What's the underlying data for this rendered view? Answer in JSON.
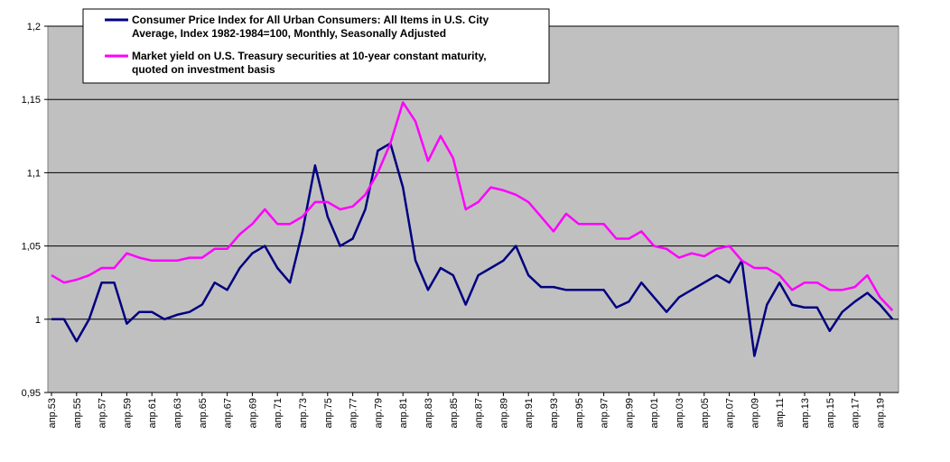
{
  "chart_data": {
    "type": "line",
    "categories": [
      "апр.53",
      null,
      "апр.55",
      null,
      "апр.57",
      null,
      "апр.59",
      null,
      "апр.61",
      null,
      "апр.63",
      null,
      "апр.65",
      null,
      "апр.67",
      null,
      "апр.69",
      null,
      "апр.71",
      null,
      "апр.73",
      null,
      "апр.75",
      null,
      "апр.77",
      null,
      "апр.79",
      null,
      "апр.81",
      null,
      "апр.83",
      null,
      "апр.85",
      null,
      "апр.87",
      null,
      "апр.89",
      null,
      "апр.91",
      null,
      "апр.93",
      null,
      "апр.95",
      null,
      "апр.97",
      null,
      "апр.99",
      null,
      "апр.01",
      null,
      "апр.03",
      null,
      "апр.05",
      null,
      "апр.07",
      null,
      "апр.09",
      null,
      "апр.11",
      null,
      "апр.13",
      null,
      "апр.15",
      null,
      "апр.17",
      null,
      "апр.19",
      null
    ],
    "series": [
      {
        "name": [
          "Consumer Price Index for All Urban Consumers: All Items in U.S. City",
          "Average, Index 1982-1984=100, Monthly, Seasonally Adjusted"
        ],
        "color": "#000080",
        "values": [
          1.0,
          1.0,
          0.985,
          1.0,
          1.025,
          1.025,
          0.997,
          1.005,
          1.005,
          1.0,
          1.003,
          1.005,
          1.01,
          1.025,
          1.02,
          1.035,
          1.045,
          1.05,
          1.035,
          1.025,
          1.06,
          1.105,
          1.07,
          1.05,
          1.055,
          1.075,
          1.115,
          1.12,
          1.09,
          1.04,
          1.02,
          1.035,
          1.03,
          1.01,
          1.03,
          1.035,
          1.04,
          1.05,
          1.03,
          1.022,
          1.022,
          1.02,
          1.02,
          1.02,
          1.02,
          1.008,
          1.012,
          1.025,
          1.015,
          1.005,
          1.015,
          1.02,
          1.025,
          1.03,
          1.025,
          1.04,
          0.975,
          1.01,
          1.025,
          1.01,
          1.008,
          1.008,
          0.992,
          1.005,
          1.012,
          1.018,
          1.01,
          1.0
        ]
      },
      {
        "name": [
          "Market yield on U.S. Treasury securities at 10-year   constant maturity,",
          "quoted on investment basis"
        ],
        "color": "#ff00ff",
        "values": [
          1.03,
          1.025,
          1.027,
          1.03,
          1.035,
          1.035,
          1.045,
          1.042,
          1.04,
          1.04,
          1.04,
          1.042,
          1.042,
          1.048,
          1.048,
          1.058,
          1.065,
          1.075,
          1.065,
          1.065,
          1.07,
          1.08,
          1.08,
          1.075,
          1.077,
          1.085,
          1.1,
          1.12,
          1.148,
          1.135,
          1.108,
          1.125,
          1.11,
          1.075,
          1.08,
          1.09,
          1.088,
          1.085,
          1.08,
          1.07,
          1.06,
          1.072,
          1.065,
          1.065,
          1.065,
          1.055,
          1.055,
          1.06,
          1.05,
          1.048,
          1.042,
          1.045,
          1.043,
          1.048,
          1.05,
          1.04,
          1.035,
          1.035,
          1.03,
          1.02,
          1.025,
          1.025,
          1.02,
          1.02,
          1.022,
          1.03,
          1.015,
          1.006
        ]
      }
    ],
    "ylim": [
      0.95,
      1.2
    ],
    "yticks": [
      {
        "value": 0.95,
        "label": "0,95"
      },
      1,
      {
        "value": 1.05,
        "label": "1,05"
      },
      {
        "value": 1.1,
        "label": "1,1"
      },
      {
        "value": 1.15,
        "label": "1,15"
      },
      {
        "value": 1.2,
        "label": "1,2"
      }
    ],
    "grid": true,
    "legend": "top-left"
  }
}
